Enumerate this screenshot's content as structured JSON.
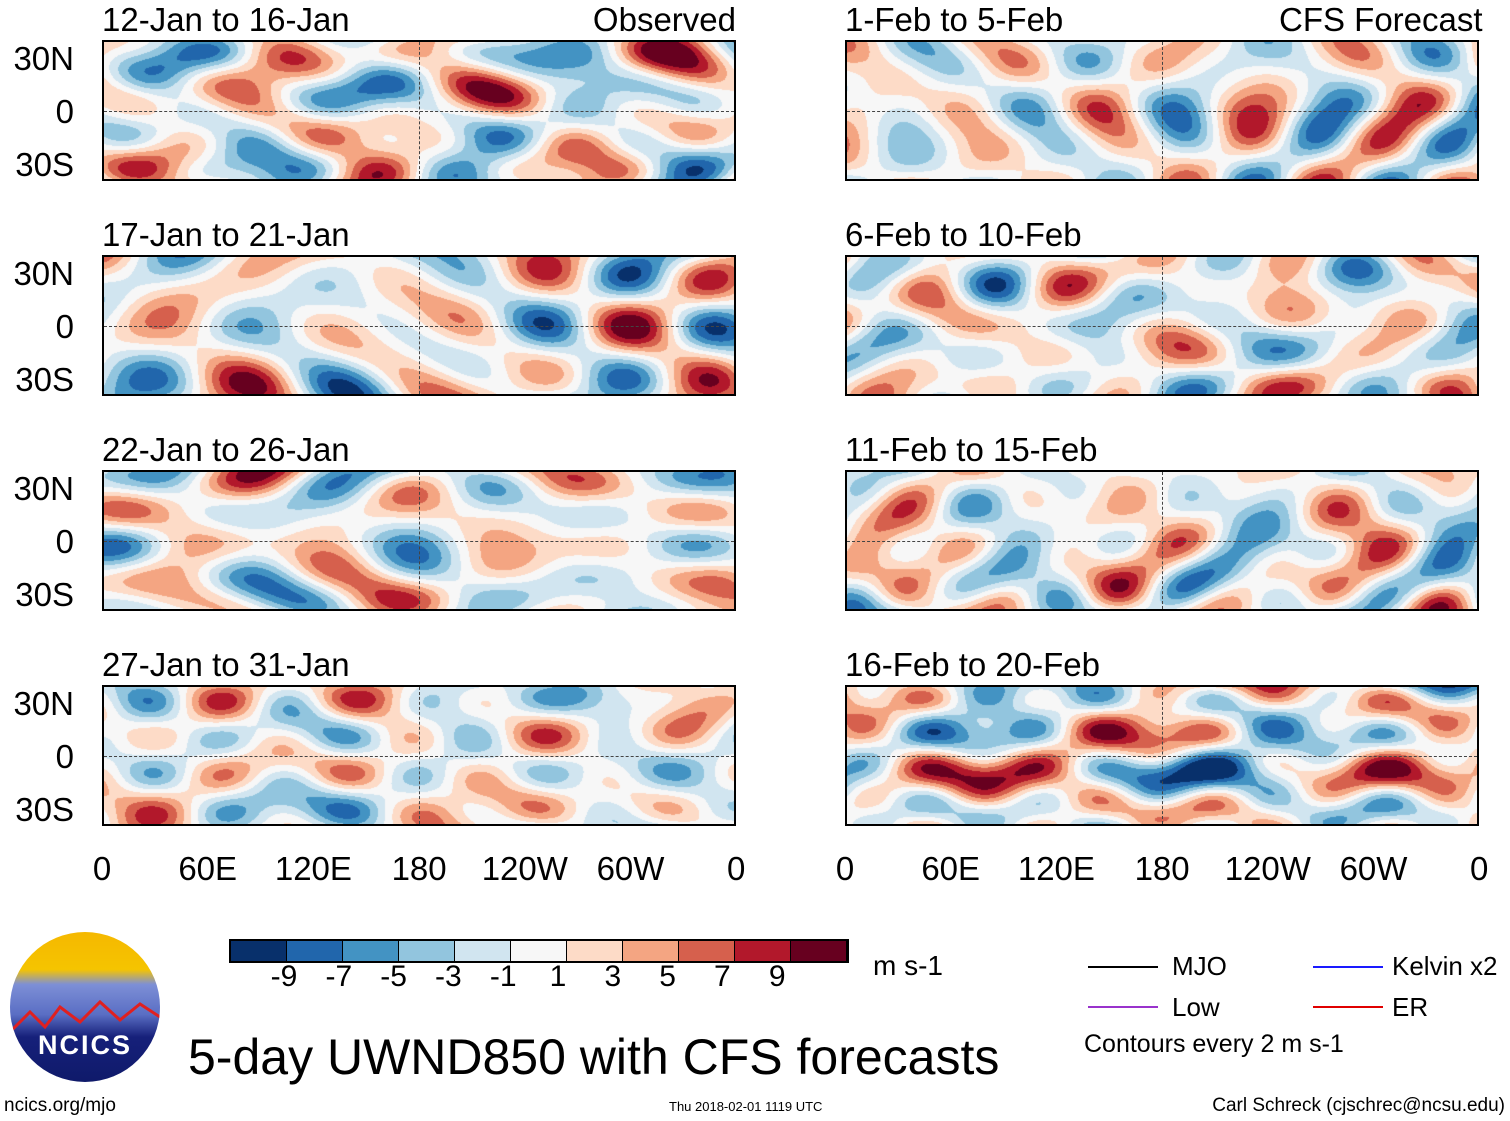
{
  "panels_left": [
    {
      "title": "12-Jan to 16-Jan",
      "tag": "Observed"
    },
    {
      "title": "17-Jan to 21-Jan"
    },
    {
      "title": "22-Jan to 26-Jan"
    },
    {
      "title": "27-Jan to 31-Jan"
    }
  ],
  "panels_right": [
    {
      "title": "1-Feb to 5-Feb",
      "tag": "CFS Forecast"
    },
    {
      "title": "6-Feb to 10-Feb"
    },
    {
      "title": "11-Feb to 15-Feb"
    },
    {
      "title": "16-Feb to 20-Feb"
    }
  ],
  "lat_labels": [
    "30N",
    "0",
    "30S"
  ],
  "lon_labels": [
    "0",
    "60E",
    "120E",
    "180",
    "120W",
    "60W",
    "0"
  ],
  "colorbar": {
    "labels": [
      "-9",
      "-7",
      "-5",
      "-3",
      "-1",
      "1",
      "3",
      "5",
      "7",
      "9"
    ],
    "colors": [
      "#08306b",
      "#2166ac",
      "#4393c3",
      "#92c5de",
      "#d1e5f0",
      "#f7f7f7",
      "#fddbc7",
      "#f4a582",
      "#d6604d",
      "#b2182b",
      "#67001f"
    ],
    "units": "m s-1"
  },
  "legend": {
    "mjo": "MJO",
    "kelvin": "Kelvin x2",
    "low": "Low",
    "er": "ER",
    "contours": "Contours every 2 m s-1"
  },
  "title": "5-day UWND850 with CFS forecasts",
  "logo_text": "NCICS",
  "footer": {
    "url": "ncics.org/mjo",
    "timestamp": "Thu 2018-02-01 1119 UTC",
    "author": "Carl Schreck (cjschrec@ncsu.edu)"
  }
}
